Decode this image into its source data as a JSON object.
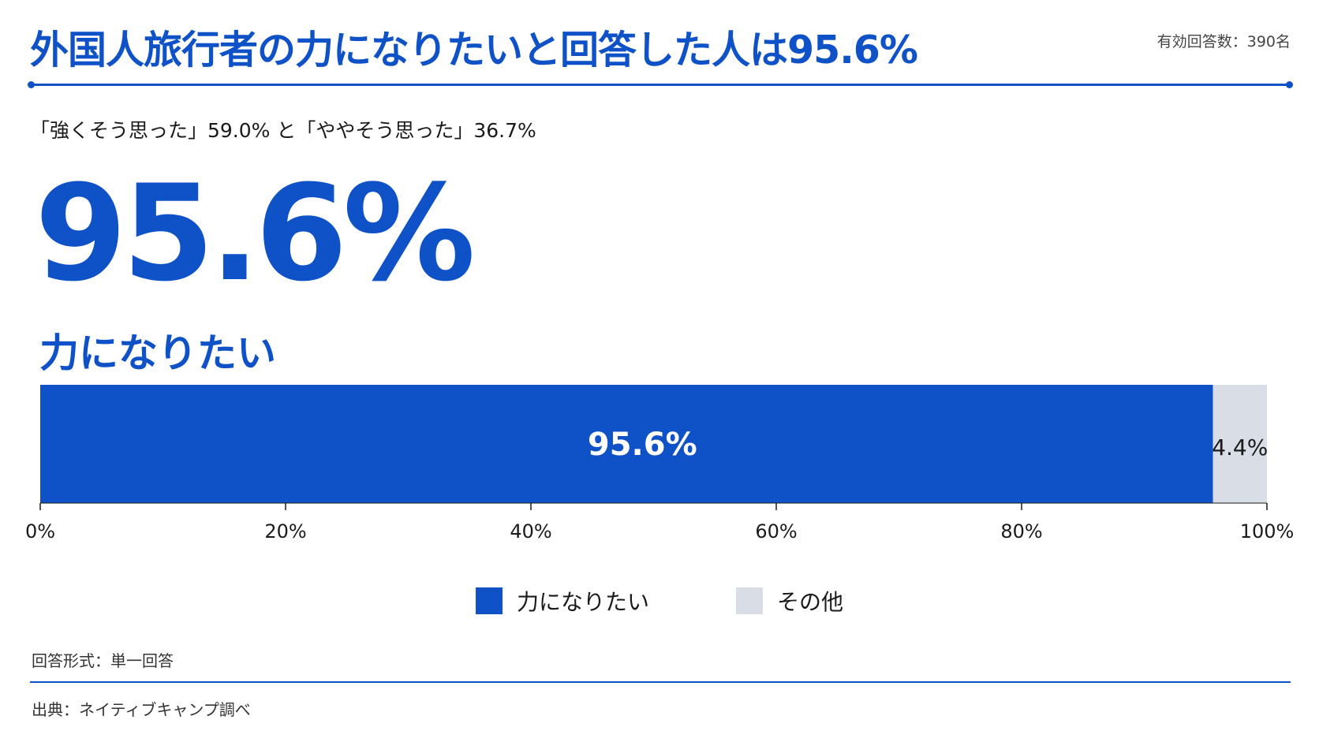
{
  "header": {
    "title": "外国人旅行者の力になりたいと回答した人は95.6%",
    "respondents": "有効回答数：390名",
    "subtitle": "「強くそう思った」59.0% と「ややそう思った」36.7%"
  },
  "highlight": {
    "value": "95.6%",
    "label": "力になりたい"
  },
  "colors": {
    "accent": "#0f52c8",
    "other": "#d9dde6"
  },
  "chart_data": {
    "type": "bar",
    "orientation": "horizontal-stacked",
    "series": [
      {
        "name": "力になりたい",
        "value": 95.6,
        "label": "95.6%"
      },
      {
        "name": "その他",
        "value": 4.4,
        "label": "4.4%"
      }
    ],
    "xlim": [
      0,
      100
    ],
    "ticks": [
      0,
      20,
      40,
      60,
      80,
      100
    ],
    "tick_labels": [
      "0%",
      "20%",
      "40%",
      "60%",
      "80%",
      "100%"
    ],
    "legend_position": "bottom-center"
  },
  "footer": {
    "answer_format": "回答形式：単一回答",
    "source": "出典：ネイティブキャンプ調べ"
  }
}
